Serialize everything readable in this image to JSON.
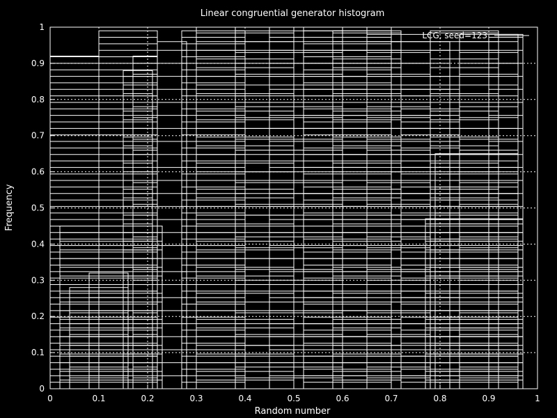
{
  "chart_data": {
    "type": "bar",
    "title": "Linear congruential generator histogram",
    "xlabel": "Random number",
    "ylabel": "Frequency",
    "xlim": [
      0,
      1
    ],
    "ylim": [
      0,
      1
    ],
    "xticks": [
      "0",
      "0.1",
      "0.2",
      "0.3",
      "0.4",
      "0.5",
      "0.6",
      "0.7",
      "0.8",
      "0.9",
      "1"
    ],
    "yticks": [
      "0",
      "0.1",
      "0.2",
      "0.3",
      "0.4",
      "0.5",
      "0.6",
      "0.7",
      "0.8",
      "0.9",
      "1"
    ],
    "grid": true,
    "legend": {
      "placement": "top-right",
      "label": "LCG, seed=123"
    },
    "colors": {
      "background": "#000000",
      "foreground": "#ffffff"
    },
    "bars": [
      {
        "x0": 0.0,
        "x1": 0.1,
        "y": 0.92
      },
      {
        "x0": 0.02,
        "x1": 0.23,
        "y": 0.45
      },
      {
        "x0": 0.04,
        "x1": 0.16,
        "y": 0.28
      },
      {
        "x0": 0.08,
        "x1": 0.16,
        "y": 0.32
      },
      {
        "x0": 0.1,
        "x1": 0.22,
        "y": 0.99
      },
      {
        "x0": 0.15,
        "x1": 0.21,
        "y": 0.88
      },
      {
        "x0": 0.17,
        "x1": 0.22,
        "y": 0.92
      },
      {
        "x0": 0.22,
        "x1": 0.28,
        "y": 0.96
      },
      {
        "x0": 0.27,
        "x1": 0.4,
        "y": 0.99
      },
      {
        "x0": 0.3,
        "x1": 0.5,
        "y": 1.0
      },
      {
        "x0": 0.38,
        "x1": 0.6,
        "y": 1.0
      },
      {
        "x0": 0.45,
        "x1": 0.65,
        "y": 1.0
      },
      {
        "x0": 0.52,
        "x1": 0.7,
        "y": 1.0
      },
      {
        "x0": 0.58,
        "x1": 0.72,
        "y": 0.99
      },
      {
        "x0": 0.65,
        "x1": 0.78,
        "y": 0.98
      },
      {
        "x0": 0.7,
        "x1": 0.82,
        "y": 0.96
      },
      {
        "x0": 0.72,
        "x1": 0.84,
        "y": 0.84
      },
      {
        "x0": 0.78,
        "x1": 0.92,
        "y": 0.99
      },
      {
        "x0": 0.84,
        "x1": 0.96,
        "y": 0.98
      },
      {
        "x0": 0.9,
        "x1": 0.97,
        "y": 0.98
      },
      {
        "x0": 0.79,
        "x1": 0.96,
        "y": 0.65
      },
      {
        "x0": 0.77,
        "x1": 0.97,
        "y": 0.47
      }
    ]
  }
}
